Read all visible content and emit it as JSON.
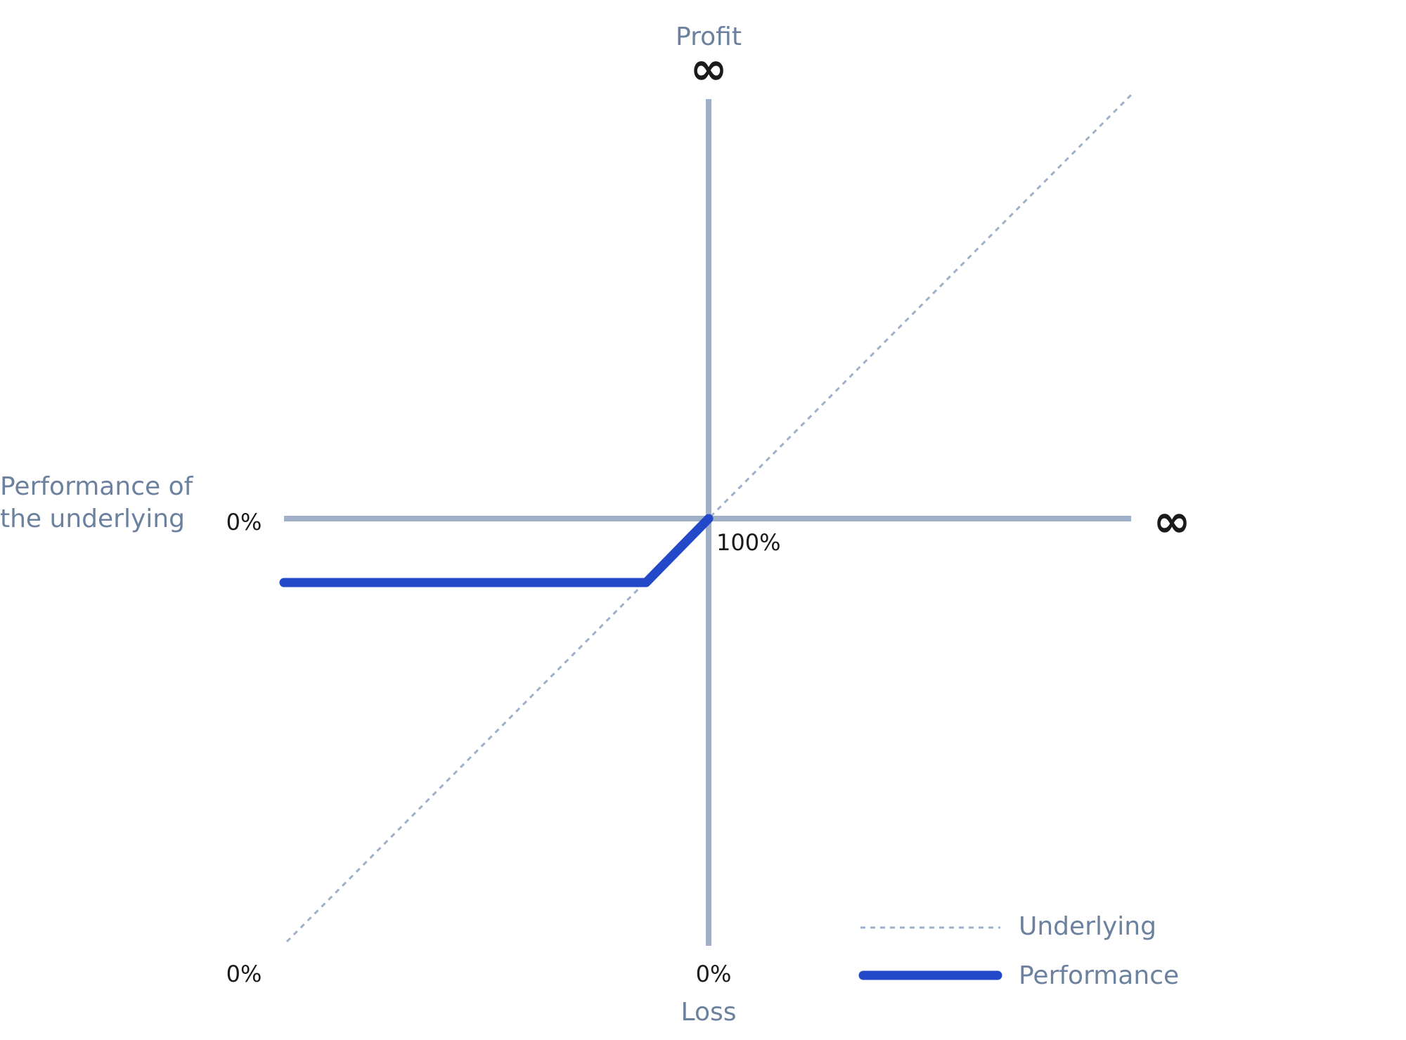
{
  "axes": {
    "top_label": "Profit",
    "top_symbol": "∞",
    "right_symbol": "∞",
    "bottom_label": "Loss",
    "left_label_lines": [
      "Performance of",
      "the underlying"
    ]
  },
  "tick_labels": {
    "left_mid": "0%",
    "origin": "100%",
    "bottom_left": "0%",
    "bottom_center": "0%"
  },
  "legend": [
    {
      "name": "Underlying"
    },
    {
      "name": "Performance"
    }
  ]
}
